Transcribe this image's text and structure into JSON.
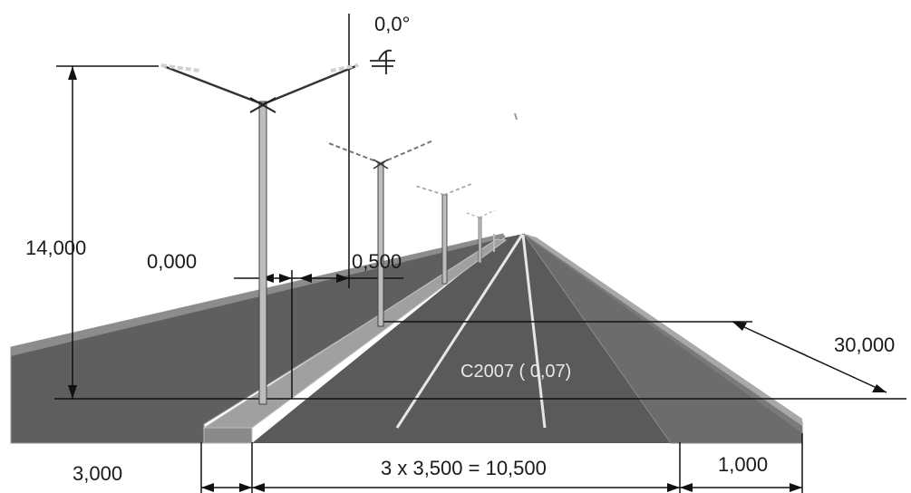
{
  "labels": {
    "angle": "0,0°",
    "height": "14,000",
    "offset": "0,000",
    "overhang": "0,500",
    "spacing": "30,000",
    "surface": "C2007 ( 0,07)",
    "median_width": "3,000",
    "lanes": "3 x 3,500 = 10,500",
    "shoulder": "1,000"
  }
}
